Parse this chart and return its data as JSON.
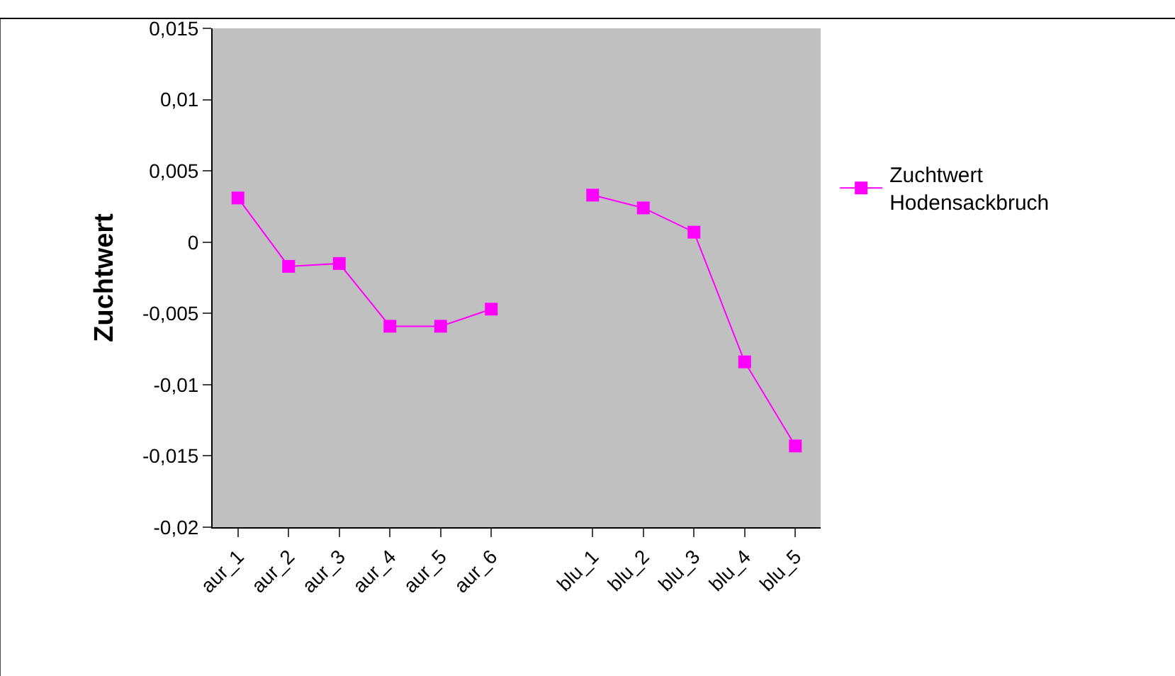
{
  "chart_data": {
    "type": "line",
    "ylabel": "Zuchtwert",
    "categories": [
      "aur_1",
      "aur_2",
      "aur_3",
      "aur_4",
      "aur_5",
      "aur_6",
      null,
      "blu_1",
      "blu_2",
      "blu_3",
      "blu_4",
      "blu_5"
    ],
    "series": [
      {
        "name": "Zuchtwert\nHodensackbruch",
        "color": "#ff00ff",
        "values": [
          0.0031,
          -0.0017,
          -0.0015,
          -0.0059,
          -0.0059,
          -0.0047,
          null,
          0.0033,
          0.0024,
          0.0007,
          -0.0084,
          -0.0143
        ]
      }
    ],
    "ylim": [
      -0.02,
      0.015
    ],
    "yticks": [
      {
        "value": -0.02,
        "label": "-0,02"
      },
      {
        "value": -0.015,
        "label": "-0,015"
      },
      {
        "value": -0.01,
        "label": "-0,01"
      },
      {
        "value": -0.005,
        "label": "-0,005"
      },
      0,
      {
        "value": 0.005,
        "label": "0,005"
      },
      {
        "value": 0.01,
        "label": "0,01"
      },
      {
        "value": 0.015,
        "label": "0,015"
      }
    ],
    "marker": "square",
    "line_style": "solid",
    "legend": "right",
    "grid": false
  }
}
